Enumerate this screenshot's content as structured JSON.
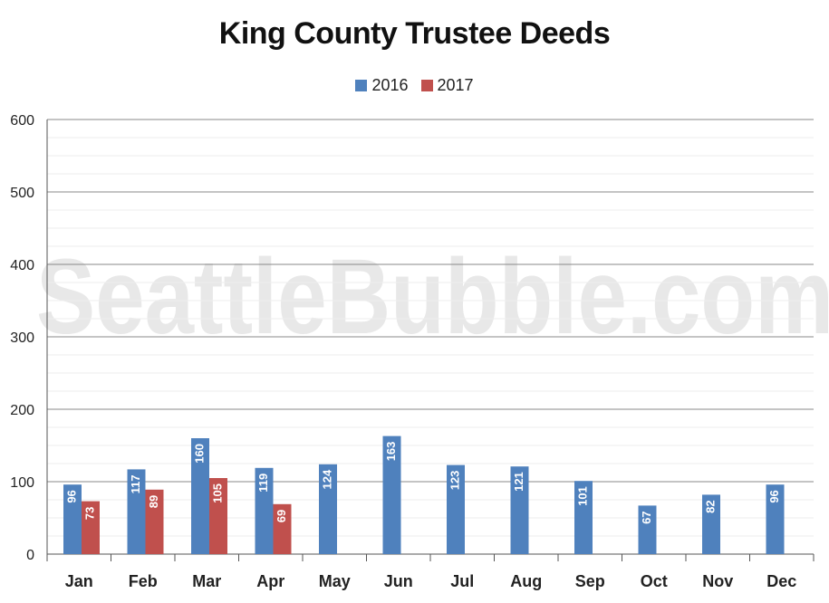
{
  "chart_data": {
    "type": "bar",
    "title": "King County Trustee Deeds",
    "categories": [
      "Jan",
      "Feb",
      "Mar",
      "Apr",
      "May",
      "Jun",
      "Jul",
      "Aug",
      "Sep",
      "Oct",
      "Nov",
      "Dec"
    ],
    "series": [
      {
        "name": "2016",
        "color": "#4f81bd",
        "values": [
          96,
          117,
          160,
          119,
          124,
          163,
          123,
          121,
          101,
          67,
          82,
          96
        ]
      },
      {
        "name": "2017",
        "color": "#c0504d",
        "values": [
          73,
          89,
          105,
          69,
          null,
          null,
          null,
          null,
          null,
          null,
          null,
          null
        ]
      }
    ],
    "ylim": [
      0,
      600
    ],
    "yticks": [
      0,
      100,
      200,
      300,
      400,
      500,
      600
    ],
    "xlabel": "",
    "ylabel": "",
    "grid": true,
    "legend": "top-center",
    "watermark": "SeattleBubble.com"
  }
}
